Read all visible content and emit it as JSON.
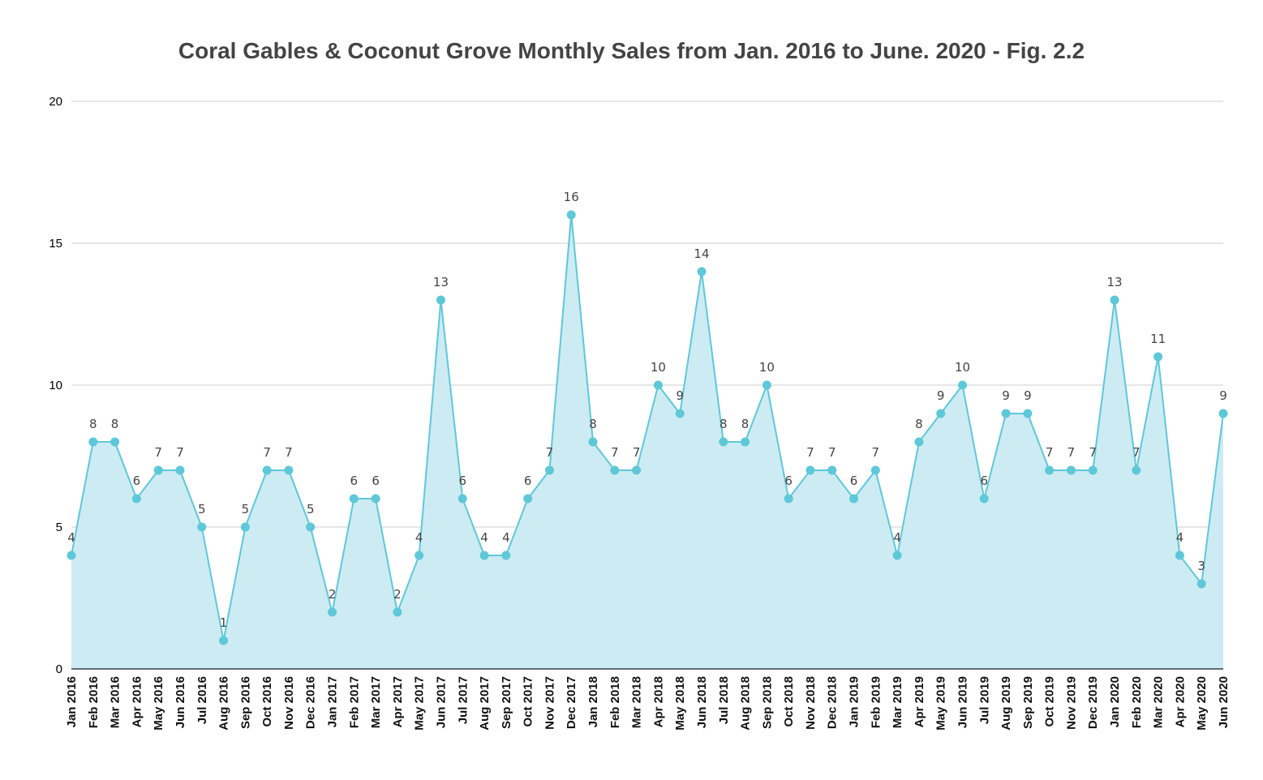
{
  "chart_data": {
    "type": "area",
    "title": "Coral Gables & Coconut Grove Monthly Sales from Jan. 2016 to June. 2020 - Fig. 2.2",
    "xlabel": "",
    "ylabel": "",
    "ylim": [
      0,
      20
    ],
    "yticks": [
      0,
      5,
      10,
      15,
      20
    ],
    "grid": true,
    "legend": "none",
    "colors": {
      "line": "#5ec8d8",
      "fill": "#cdebf3",
      "grid": "#cccccc",
      "axis": "#333f48"
    },
    "categories": [
      "Jan 2016",
      "Feb 2016",
      "Mar 2016",
      "Apr 2016",
      "May 2016",
      "Jun 2016",
      "Jul 2016",
      "Aug 2016",
      "Sep 2016",
      "Oct 2016",
      "Nov 2016",
      "Dec 2016",
      "Jan 2017",
      "Feb 2017",
      "Mar 2017",
      "Apr 2017",
      "May 2017",
      "Jun 2017",
      "Jul 2017",
      "Aug 2017",
      "Sep 2017",
      "Oct 2017",
      "Nov 2017",
      "Dec 2017",
      "Jan 2018",
      "Feb 2018",
      "Mar 2018",
      "Apr 2018",
      "May 2018",
      "Jun 2018",
      "Jul 2018",
      "Aug 2018",
      "Sep 2018",
      "Oct 2018",
      "Nov 2018",
      "Dec 2018",
      "Jan 2019",
      "Feb 2019",
      "Mar 2019",
      "Apr 2019",
      "May 2019",
      "Jun 2019",
      "Jul 2019",
      "Aug 2019",
      "Sep 2019",
      "Oct 2019",
      "Nov 2019",
      "Dec 2019",
      "Jan 2020",
      "Feb 2020",
      "Mar 2020",
      "Apr 2020",
      "May 2020",
      "Jun 2020"
    ],
    "series": [
      {
        "name": "Monthly Sales",
        "values": [
          4,
          8,
          8,
          6,
          7,
          7,
          5,
          1,
          5,
          7,
          7,
          5,
          2,
          6,
          6,
          2,
          4,
          13,
          6,
          4,
          4,
          6,
          7,
          16,
          8,
          7,
          7,
          10,
          9,
          14,
          8,
          8,
          10,
          6,
          7,
          7,
          6,
          7,
          4,
          8,
          9,
          10,
          6,
          9,
          9,
          7,
          7,
          7,
          13,
          7,
          11,
          4,
          3,
          9
        ]
      }
    ]
  }
}
